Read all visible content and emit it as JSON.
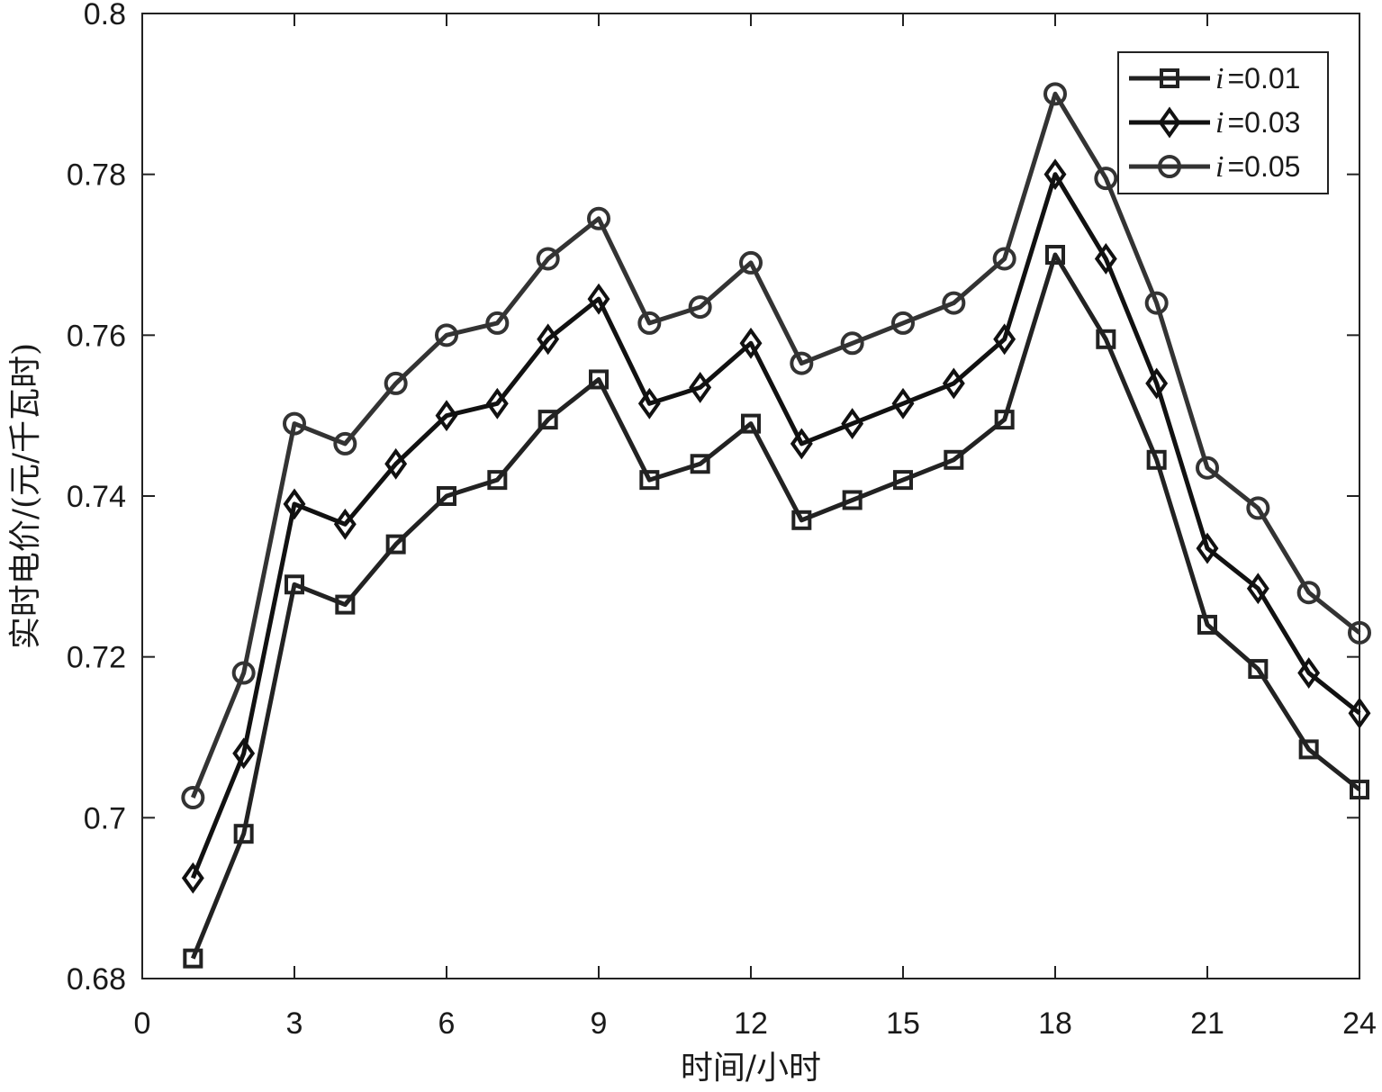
{
  "chart_data": {
    "type": "line",
    "xlabel": "时间/小时",
    "ylabel": "实时电价/(元/千瓦时)",
    "xlim": [
      0,
      24
    ],
    "ylim": [
      0.68,
      0.8
    ],
    "xticks": [
      0,
      3,
      6,
      9,
      12,
      15,
      18,
      21,
      24
    ],
    "yticks": [
      0.68,
      0.7,
      0.72,
      0.74,
      0.76,
      0.78,
      0.8
    ],
    "ytick_labels": [
      "0.68",
      "0.7",
      "0.72",
      "0.74",
      "0.76",
      "0.78",
      "0.8"
    ],
    "grid": false,
    "legend_position": "top-right",
    "x": [
      1,
      2,
      3,
      4,
      5,
      6,
      7,
      8,
      9,
      10,
      11,
      12,
      13,
      14,
      15,
      16,
      17,
      18,
      19,
      20,
      21,
      22,
      23,
      24
    ],
    "series": [
      {
        "name": "i=0.01",
        "name_var": "i",
        "name_value": "=0.01",
        "marker": "square",
        "color": "#222222",
        "values": [
          0.6825,
          0.698,
          0.729,
          0.7265,
          0.734,
          0.74,
          0.742,
          0.7495,
          0.7545,
          0.742,
          0.744,
          0.749,
          0.737,
          0.7395,
          0.742,
          0.7445,
          0.7495,
          0.77,
          0.7595,
          0.7445,
          0.724,
          0.7185,
          0.7085,
          0.7035
        ]
      },
      {
        "name": "i=0.03",
        "name_var": "i",
        "name_value": "=0.03",
        "marker": "diamond",
        "color": "#111111",
        "values": [
          0.6925,
          0.708,
          0.739,
          0.7365,
          0.744,
          0.75,
          0.7515,
          0.7595,
          0.7645,
          0.7515,
          0.7535,
          0.759,
          0.7465,
          0.749,
          0.7515,
          0.754,
          0.7595,
          0.78,
          0.7695,
          0.754,
          0.7335,
          0.7285,
          0.718,
          0.713
        ]
      },
      {
        "name": "i=0.05",
        "name_var": "i",
        "name_value": "=0.05",
        "marker": "circle",
        "color": "#333333",
        "values": [
          0.7025,
          0.718,
          0.749,
          0.7465,
          0.754,
          0.76,
          0.7615,
          0.7695,
          0.7745,
          0.7615,
          0.7635,
          0.769,
          0.7565,
          0.759,
          0.7615,
          0.764,
          0.7695,
          0.79,
          0.7795,
          0.764,
          0.7435,
          0.7385,
          0.728,
          0.723
        ]
      }
    ]
  }
}
